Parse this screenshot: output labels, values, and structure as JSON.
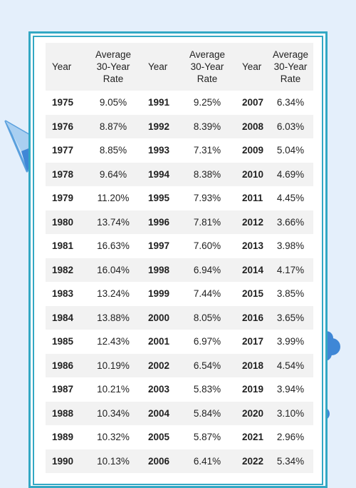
{
  "table": {
    "headers": [
      "Year",
      "Average 30-Year Rate",
      "Year",
      "Average 30-Year Rate",
      "Year",
      "Average 30-Year Rate"
    ],
    "rows": [
      [
        "1975",
        "9.05%",
        "1991",
        "9.25%",
        "2007",
        "6.34%"
      ],
      [
        "1976",
        "8.87%",
        "1992",
        "8.39%",
        "2008",
        "6.03%"
      ],
      [
        "1977",
        "8.85%",
        "1993",
        "7.31%",
        "2009",
        "5.04%"
      ],
      [
        "1978",
        "9.64%",
        "1994",
        "8.38%",
        "2010",
        "4.69%"
      ],
      [
        "1979",
        "11.20%",
        "1995",
        "7.93%",
        "2011",
        "4.45%"
      ],
      [
        "1980",
        "13.74%",
        "1996",
        "7.81%",
        "2012",
        "3.66%"
      ],
      [
        "1981",
        "16.63%",
        "1997",
        "7.60%",
        "2013",
        "3.98%"
      ],
      [
        "1982",
        "16.04%",
        "1998",
        "6.94%",
        "2014",
        "4.17%"
      ],
      [
        "1983",
        "13.24%",
        "1999",
        "7.44%",
        "2015",
        "3.85%"
      ],
      [
        "1984",
        "13.88%",
        "2000",
        "8.05%",
        "2016",
        "3.65%"
      ],
      [
        "1985",
        "12.43%",
        "2001",
        "6.97%",
        "2017",
        "3.99%"
      ],
      [
        "1986",
        "10.19%",
        "2002",
        "6.54%",
        "2018",
        "4.54%"
      ],
      [
        "1987",
        "10.21%",
        "2003",
        "5.83%",
        "2019",
        "3.94%"
      ],
      [
        "1988",
        "10.34%",
        "2004",
        "5.84%",
        "2020",
        "3.10%"
      ],
      [
        "1989",
        "10.32%",
        "2005",
        "5.87%",
        "2021",
        "2.96%"
      ],
      [
        "1990",
        "10.13%",
        "2006",
        "6.41%",
        "2022",
        "5.34%"
      ]
    ]
  },
  "colors": {
    "background": "#e4effb",
    "frame": "#33a8c4",
    "stripe": "#f2f2f2",
    "decor_blue": "#3f87d6"
  },
  "decor": {
    "left": "paper-plane-icon",
    "right": "cloud-blob-icon"
  }
}
